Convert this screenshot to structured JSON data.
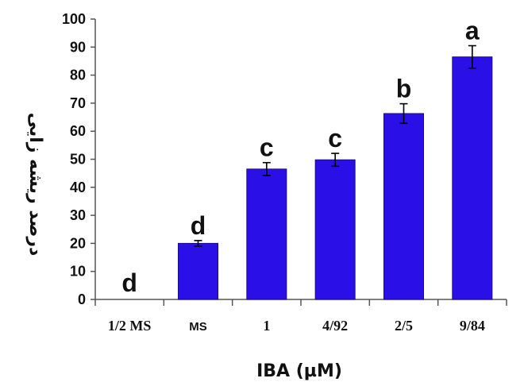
{
  "chart_data": {
    "type": "bar",
    "categories": [
      "1/2 MS",
      "MS",
      "1",
      "4/92",
      "2/5",
      "9/84"
    ],
    "values": [
      0,
      20,
      46.5,
      49.8,
      66.3,
      86.5
    ],
    "errors": [
      0,
      1.0,
      2.3,
      2.3,
      3.5,
      4.0
    ],
    "significance_letters": [
      "d",
      "d",
      "c",
      "c",
      "b",
      "a"
    ],
    "xlabel": "IBA (µM)",
    "ylabel": "درصد ریشه زایی",
    "ylim": [
      0,
      100
    ],
    "yticks": [
      0,
      10,
      20,
      30,
      40,
      50,
      60,
      70,
      80,
      90,
      100
    ],
    "grid": false,
    "bar_color": "#2a0fe6",
    "bar_edge_color": "#1a0a8c"
  }
}
